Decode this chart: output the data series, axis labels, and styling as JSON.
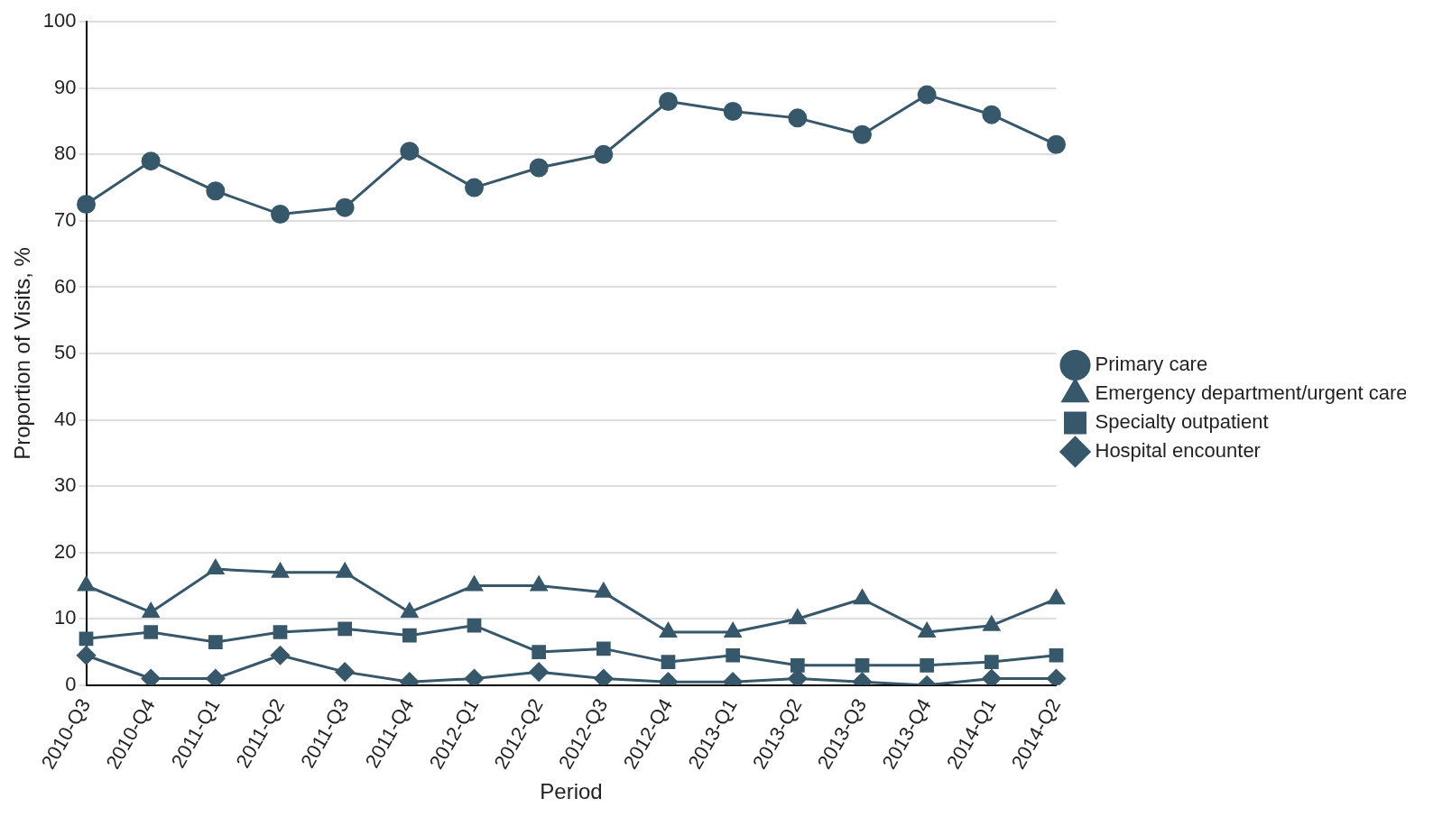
{
  "chart_data": {
    "type": "line",
    "xlabel": "Period",
    "ylabel": "Proportion of Visits, %",
    "categories": [
      "2010-Q3",
      "2010-Q4",
      "2011-Q1",
      "2011-Q2",
      "2011-Q3",
      "2011-Q4",
      "2012-Q1",
      "2012-Q2",
      "2012-Q3",
      "2012-Q4",
      "2013-Q1",
      "2013-Q2",
      "2013-Q3",
      "2013-Q4",
      "2014-Q1",
      "2014-Q2"
    ],
    "series": [
      {
        "name": "Primary care",
        "color": "#37576a",
        "marker": "circle",
        "values": [
          72.5,
          79,
          74.5,
          71,
          72,
          80.5,
          75,
          78,
          80,
          88,
          86.5,
          85.5,
          83,
          89,
          86,
          81.5
        ]
      },
      {
        "name": "Emergency department/urgent care",
        "color": "#37576a",
        "marker": "triangle",
        "values": [
          15,
          11,
          17.5,
          17,
          17,
          11,
          15,
          15,
          14,
          8,
          8,
          10,
          13,
          8,
          9,
          13
        ]
      },
      {
        "name": "Specialty outpatient",
        "color": "#37576a",
        "marker": "square",
        "values": [
          7,
          8,
          6.5,
          8,
          8.5,
          7.5,
          9,
          5,
          5.5,
          3.5,
          4.5,
          3,
          3,
          3,
          3.5,
          4.5
        ]
      },
      {
        "name": "Hospital encounter",
        "color": "#37576a",
        "marker": "diamond",
        "values": [
          4.5,
          1,
          1,
          4.5,
          2,
          0.5,
          1,
          2,
          1,
          0.5,
          0.5,
          1,
          0.5,
          0,
          1,
          1
        ]
      }
    ],
    "ylim": [
      0,
      100
    ],
    "yticks": [
      0,
      10,
      20,
      30,
      40,
      50,
      60,
      70,
      80,
      90,
      100
    ],
    "grid": "y",
    "legend": "right",
    "line_style": "solid"
  }
}
